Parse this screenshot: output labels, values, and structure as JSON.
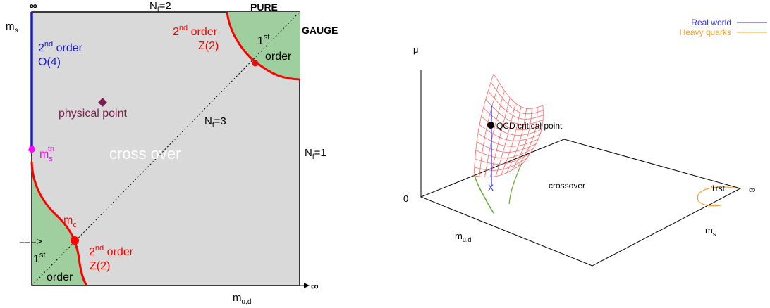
{
  "colors": {
    "crossover_region": "#d9d9d9",
    "first_order_region": "#9fcf9f",
    "second_order_z2": "#ff0000",
    "second_order_o4": "#1a1acc",
    "tricritical": "#ff00ff",
    "physical_point": "#7a1f4f",
    "real_world": "#2a2aff",
    "heavy_quarks": "#ffa030",
    "surface_mesh": "#ff6a6a",
    "surface_edge": "#66aa33"
  },
  "left_diagram": {
    "top_axis_symbol": "∞",
    "right_axis_symbol": "∞",
    "ms_axis": {
      "base": "m",
      "sub": "s"
    },
    "mud_axis": {
      "base": "m",
      "sub": "u,d"
    },
    "nf2": {
      "base": "N",
      "sub": "f",
      "tail": "=2"
    },
    "nf1": {
      "base": "N",
      "sub": "f",
      "tail": "=1"
    },
    "nf3": {
      "base": "N",
      "sub": "f",
      "tail": "=3"
    },
    "pure": "PURE",
    "gauge": "GAUGE",
    "second_order": {
      "num": "2",
      "sup": "nd",
      "word": " order"
    },
    "first_order": {
      "num": "1",
      "sup": "st",
      "word": "order"
    },
    "o4": "O(4)",
    "z2": "Z(2)",
    "physical_point": "physical point",
    "crossover": "cross over",
    "ms_tri": {
      "base": "m",
      "sub": "s",
      "sup": "tri"
    },
    "mc": {
      "base": "m",
      "sub": "c"
    },
    "arrow": "===>"
  },
  "right_diagram": {
    "legend": [
      {
        "label": "Real world",
        "color": "#2a2aff"
      },
      {
        "label": "Heavy quarks",
        "color": "#ffa030"
      }
    ],
    "mu_axis": "μ",
    "origin": "0",
    "infinity": "∞",
    "mud_axis": {
      "base": "m",
      "sub": "u,d"
    },
    "ms_axis": {
      "base": "m",
      "sub": "s"
    },
    "critical_point": "QCD critical point",
    "crossover": "crossover",
    "first": "1rst",
    "x_mark": "X"
  }
}
